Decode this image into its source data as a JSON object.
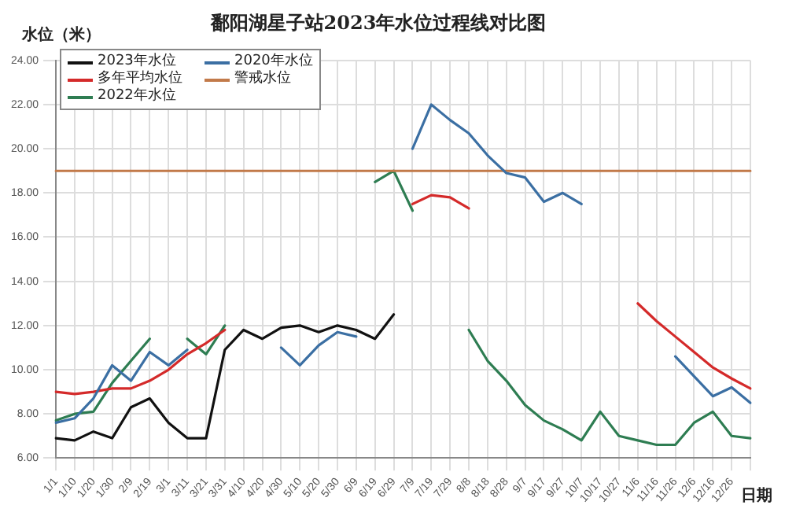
{
  "chart_data": {
    "type": "line",
    "title": "鄱阳湖星子站2023年水位过程线对比图",
    "ylabel": "水位（米）",
    "xlabel": "日期",
    "categories": [
      "1/1",
      "1/10",
      "1/20",
      "1/30",
      "2/9",
      "2/19",
      "3/1",
      "3/11",
      "3/21",
      "3/31",
      "4/10",
      "4/20",
      "4/30",
      "5/10",
      "5/20",
      "5/30",
      "6/9",
      "6/19",
      "6/29",
      "7/9",
      "7/19",
      "7/29",
      "8/8",
      "8/18",
      "8/28",
      "9/7",
      "9/17",
      "9/27",
      "10/7",
      "10/17",
      "10/27",
      "11/6",
      "11/16",
      "11/26",
      "12/6",
      "12/16",
      "12/26",
      null
    ],
    "series": [
      {
        "name": "2023年水位",
        "color": "#111111",
        "values": [
          6.9,
          6.8,
          7.2,
          6.9,
          8.3,
          8.7,
          7.6,
          6.9,
          6.9,
          10.9,
          11.8,
          11.4,
          11.9,
          12.0,
          11.7,
          12.0,
          11.8,
          11.4,
          12.5,
          null,
          null,
          null,
          null,
          null,
          null,
          null,
          null,
          null,
          null,
          null,
          null,
          null,
          null,
          null,
          null,
          null,
          null,
          null
        ]
      },
      {
        "name": "2020年水位",
        "color": "#3b6fa3",
        "values": [
          7.6,
          7.8,
          8.7,
          10.2,
          9.5,
          10.8,
          10.2,
          10.9,
          null,
          null,
          null,
          null,
          11.0,
          10.2,
          11.1,
          11.7,
          11.5,
          null,
          null,
          20.0,
          22.0,
          21.3,
          20.7,
          19.7,
          18.9,
          18.7,
          17.6,
          18.0,
          17.5,
          null,
          null,
          null,
          null,
          10.6,
          9.7,
          8.8,
          9.2,
          8.5
        ]
      },
      {
        "name": "多年平均水位",
        "color": "#d42a2a",
        "values": [
          9.0,
          8.9,
          9.0,
          9.15,
          9.15,
          9.5,
          10.0,
          10.7,
          11.2,
          11.8,
          null,
          null,
          null,
          null,
          null,
          null,
          null,
          null,
          null,
          17.5,
          17.9,
          17.8,
          17.3,
          null,
          null,
          null,
          null,
          null,
          null,
          null,
          null,
          13.0,
          12.2,
          11.5,
          10.8,
          10.1,
          9.6,
          9.15
        ]
      },
      {
        "name": "警戒水位",
        "color": "#c27a4a",
        "values": [
          19,
          19,
          19,
          19,
          19,
          19,
          19,
          19,
          19,
          19,
          19,
          19,
          19,
          19,
          19,
          19,
          19,
          19,
          19,
          19,
          19,
          19,
          19,
          19,
          19,
          19,
          19,
          19,
          19,
          19,
          19,
          19,
          19,
          19,
          19,
          19,
          19,
          19
        ]
      },
      {
        "name": "2022年水位",
        "color": "#2e7d52",
        "values": [
          7.7,
          8.0,
          8.1,
          9.4,
          10.4,
          11.4,
          null,
          11.4,
          10.7,
          12.0,
          null,
          null,
          null,
          null,
          null,
          null,
          null,
          18.5,
          19.0,
          17.2,
          null,
          null,
          11.8,
          10.4,
          9.5,
          8.4,
          7.7,
          7.3,
          6.8,
          8.1,
          7.0,
          6.8,
          6.6,
          6.6,
          7.6,
          8.1,
          7.0,
          6.9
        ]
      }
    ],
    "ylim": [
      6,
      24
    ],
    "yticks": [
      {
        "value": 6,
        "label": "6.00"
      },
      {
        "value": 8,
        "label": "8.00"
      },
      {
        "value": 10,
        "label": "10.00"
      },
      {
        "value": 12,
        "label": "12.00"
      },
      {
        "value": 14,
        "label": "14.00"
      },
      {
        "value": 16,
        "label": "16.00"
      },
      {
        "value": 18,
        "label": "18.00"
      },
      {
        "value": 20,
        "label": "20.00"
      },
      {
        "value": 22,
        "label": "22.00"
      },
      {
        "value": 24,
        "label": "24.00"
      }
    ],
    "grid": true,
    "legend": "top left",
    "marker": "none",
    "line_style": "solid"
  }
}
